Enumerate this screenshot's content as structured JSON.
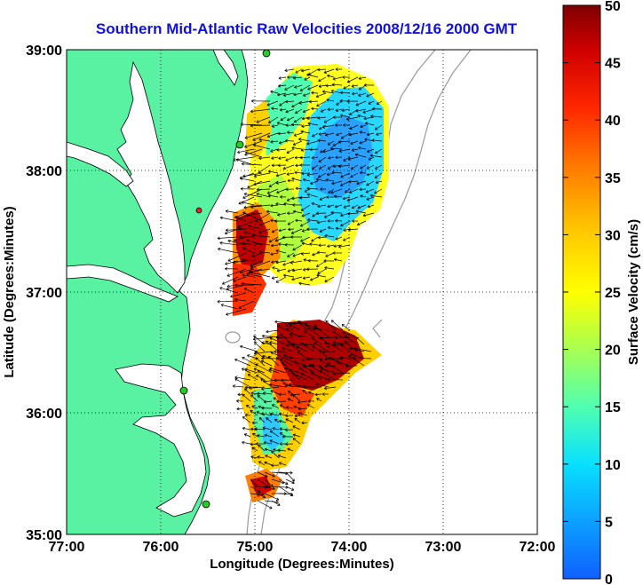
{
  "title": "Southern Mid-Atlantic Raw Velocities 2008/12/16 2000 GMT",
  "x_axis": {
    "label": "Longitude (Degrees:Minutes)",
    "ticks": [
      "77:00",
      "76:00",
      "75:00",
      "74:00",
      "73:00",
      "72:00"
    ]
  },
  "y_axis": {
    "label": "Latitude (Degrees:Minutes)",
    "ticks": [
      "35:00",
      "36:00",
      "37:00",
      "38:00",
      "39:00"
    ]
  },
  "colorbar": {
    "label": "Surface Velocity (cm/s)",
    "ticks": [
      "0",
      "5",
      "10",
      "15",
      "20",
      "25",
      "30",
      "35",
      "40",
      "45",
      "50"
    ],
    "range": [
      0,
      50
    ]
  },
  "colors": {
    "land": "#58f2a2",
    "water": "#ffffff",
    "title": "#1010e0",
    "grid": "#000000",
    "coastline": "#000000",
    "bathymetry": "#999999",
    "station": "#22cc22",
    "station_alt": "#ee2222"
  },
  "map": {
    "lon_range": [
      -77,
      -72
    ],
    "lat_range": [
      35,
      39
    ],
    "grid": "dotted"
  }
}
